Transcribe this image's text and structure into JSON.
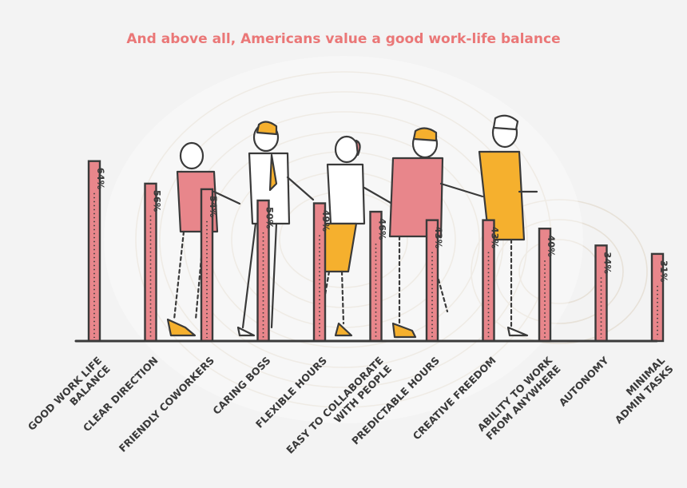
{
  "colors": {
    "bar_fill": "#e8868b",
    "bar_stroke": "#3a3a3a",
    "accent_yellow": "#f5b02e",
    "title": "#ea7777",
    "background": "#f3f3f3"
  },
  "chart_data": {
    "type": "bar",
    "title": "And above all, Americans value a good work-life balance",
    "categories": [
      [
        "GOOD WORK LIFE",
        "BALANCE"
      ],
      [
        "CLEAR DIRECTION"
      ],
      [
        "FRIENDLY COWORKERS"
      ],
      [
        "CARING BOSS"
      ],
      [
        "FLEXIBLE HOURS"
      ],
      [
        "EASY TO COLLABORATE",
        "WITH PEOPLE"
      ],
      [
        "PREDICTABLE HOURS"
      ],
      [
        "CREATIVE FREEDOM"
      ],
      [
        "ABILITY TO WORK",
        "FROM ANYWHERE"
      ],
      [
        "AUTONOMY"
      ],
      [
        "MINIMAL",
        "ADMIN TASKS"
      ]
    ],
    "values": [
      64,
      56,
      54,
      50,
      49,
      46,
      43,
      43,
      40,
      34,
      31
    ],
    "value_labels": [
      "64%",
      "56%",
      "54%",
      "50%",
      "49%",
      "46%",
      "43%",
      "43%",
      "40%",
      "34%",
      "31%"
    ],
    "ylim": [
      0,
      100
    ],
    "grid": false,
    "legend": "none",
    "decorations": [
      "person-illustrations",
      "fingerprint-background"
    ]
  }
}
